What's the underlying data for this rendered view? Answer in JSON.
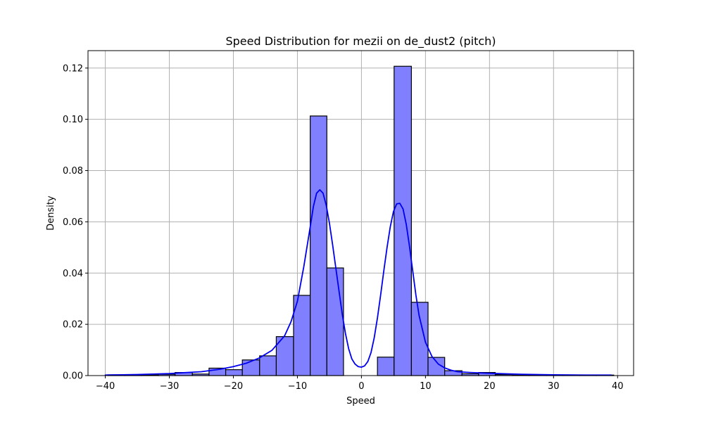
{
  "chart_data": {
    "type": "bar",
    "title": "Speed Distribution for mezii on de_dust2 (pitch)",
    "xlabel": "Speed",
    "ylabel": "Density",
    "xlim": [
      -42.7,
      42.5
    ],
    "ylim": [
      0,
      0.1268
    ],
    "x_ticks": [
      -40,
      -30,
      -20,
      -10,
      0,
      10,
      20,
      30,
      40
    ],
    "x_tick_labels": [
      "−40",
      "−30",
      "−20",
      "−10",
      "0",
      "10",
      "20",
      "30",
      "40"
    ],
    "y_ticks": [
      0.0,
      0.02,
      0.04,
      0.06,
      0.08,
      0.1,
      0.12
    ],
    "y_tick_labels": [
      "0.00",
      "0.02",
      "0.04",
      "0.06",
      "0.08",
      "0.10",
      "0.12"
    ],
    "grid": true,
    "colors": {
      "bar_fill": "#8080ff",
      "bar_edge": "#000000",
      "kde_line": "#0000ee",
      "grid": "#b0b0b0",
      "axes": "#000000"
    },
    "bins": [
      {
        "x0": -39.6,
        "x1": -37.0,
        "value": 0.0003
      },
      {
        "x0": -37.0,
        "x1": -34.4,
        "value": 0.0002
      },
      {
        "x0": -34.4,
        "x1": -31.7,
        "value": 0.0003
      },
      {
        "x0": -31.7,
        "x1": -29.1,
        "value": 0.0005
      },
      {
        "x0": -29.1,
        "x1": -26.4,
        "value": 0.0012
      },
      {
        "x0": -26.4,
        "x1": -23.8,
        "value": 0.0006
      },
      {
        "x0": -23.8,
        "x1": -21.2,
        "value": 0.0029
      },
      {
        "x0": -21.2,
        "x1": -18.6,
        "value": 0.0023
      },
      {
        "x0": -18.6,
        "x1": -15.9,
        "value": 0.0061
      },
      {
        "x0": -15.9,
        "x1": -13.3,
        "value": 0.0077
      },
      {
        "x0": -13.3,
        "x1": -10.6,
        "value": 0.0152
      },
      {
        "x0": -10.6,
        "x1": -8.0,
        "value": 0.0313
      },
      {
        "x0": -8.0,
        "x1": -5.4,
        "value": 0.1013
      },
      {
        "x0": -5.4,
        "x1": -2.8,
        "value": 0.042
      },
      {
        "x0": 2.5,
        "x1": 5.1,
        "value": 0.0072
      },
      {
        "x0": 5.1,
        "x1": 7.8,
        "value": 0.1207
      },
      {
        "x0": 7.8,
        "x1": 10.4,
        "value": 0.0286
      },
      {
        "x0": 10.4,
        "x1": 13.0,
        "value": 0.0071
      },
      {
        "x0": 13.0,
        "x1": 15.7,
        "value": 0.0019
      },
      {
        "x0": 15.7,
        "x1": 18.3,
        "value": 0.0007
      },
      {
        "x0": 18.3,
        "x1": 20.9,
        "value": 0.0012
      },
      {
        "x0": 20.9,
        "x1": 23.6,
        "value": 0.0004
      },
      {
        "x0": 23.6,
        "x1": 26.2,
        "value": 0.0002
      },
      {
        "x0": 26.2,
        "x1": 28.9,
        "value": 0.0002
      },
      {
        "x0": 28.9,
        "x1": 31.5,
        "value": 0.0002
      },
      {
        "x0": 31.5,
        "x1": 34.1,
        "value": 0.0002
      },
      {
        "x0": 34.1,
        "x1": 36.7,
        "value": 0.0002
      },
      {
        "x0": 36.7,
        "x1": 39.4,
        "value": 0.0002
      }
    ],
    "kde": {
      "x": [
        -40,
        -35,
        -30,
        -25,
        -22,
        -20,
        -18,
        -16,
        -14,
        -12,
        -11,
        -10,
        -9,
        -8,
        -7.5,
        -7,
        -6.5,
        -6,
        -5.5,
        -5,
        -4.5,
        -4,
        -3.5,
        -3,
        -2.5,
        -2,
        -1.5,
        -1,
        -0.5,
        0,
        0.5,
        1,
        1.5,
        2,
        2.5,
        3,
        3.5,
        4,
        4.5,
        5,
        5.5,
        6,
        6.5,
        7,
        7.5,
        8,
        8.5,
        9,
        10,
        11,
        12,
        13,
        14,
        15,
        17,
        20,
        25,
        30,
        35,
        39
      ],
      "y": [
        0.0002,
        0.0004,
        0.0008,
        0.0015,
        0.0025,
        0.0035,
        0.0048,
        0.0068,
        0.0098,
        0.0155,
        0.021,
        0.029,
        0.0425,
        0.058,
        0.066,
        0.0712,
        0.0725,
        0.0712,
        0.0665,
        0.0595,
        0.051,
        0.042,
        0.033,
        0.024,
        0.0165,
        0.0105,
        0.0065,
        0.0045,
        0.0035,
        0.0033,
        0.0038,
        0.0055,
        0.009,
        0.0148,
        0.0225,
        0.0315,
        0.041,
        0.05,
        0.058,
        0.064,
        0.067,
        0.0672,
        0.065,
        0.059,
        0.0505,
        0.041,
        0.0315,
        0.0235,
        0.013,
        0.0075,
        0.0045,
        0.003,
        0.0021,
        0.0015,
        0.0012,
        0.0009,
        0.0005,
        0.0003,
        0.0002,
        0.0002
      ]
    }
  }
}
